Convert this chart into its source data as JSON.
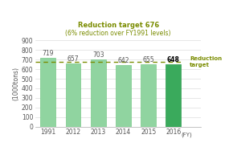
{
  "categories": [
    "1991",
    "2012",
    "2013",
    "2014",
    "2015",
    "2016"
  ],
  "values": [
    719,
    657,
    703,
    642,
    655,
    648
  ],
  "bar_colors": [
    "#90d4a0",
    "#90d4a0",
    "#90d4a0",
    "#90d4a0",
    "#90d4a0",
    "#3aaa5c"
  ],
  "bar_edge_colors": [
    "#78c888",
    "#78c888",
    "#78c888",
    "#78c888",
    "#78c888",
    "#2a9a4c"
  ],
  "value_fontweights": [
    "normal",
    "normal",
    "normal",
    "normal",
    "normal",
    "bold"
  ],
  "reduction_target": 676,
  "reduction_line_color": "#7a8c00",
  "title_line1": "Reduction target 676",
  "title_line2": "(6% reduction over FY1991 levels)",
  "title_color": "#7a8c00",
  "ylabel": "(1000tons)",
  "xlabel_suffix": "(FY)",
  "ylim": [
    0,
    900
  ],
  "yticks": [
    0,
    100,
    200,
    300,
    400,
    500,
    600,
    700,
    800,
    900
  ],
  "label_color": "#555555",
  "value_color": "#555555",
  "last_value_color": "#000000",
  "reduction_label": "Reduction\ntarget",
  "reduction_label_color": "#7a8c00",
  "background_color": "#ffffff",
  "grid_color": "#dddddd"
}
